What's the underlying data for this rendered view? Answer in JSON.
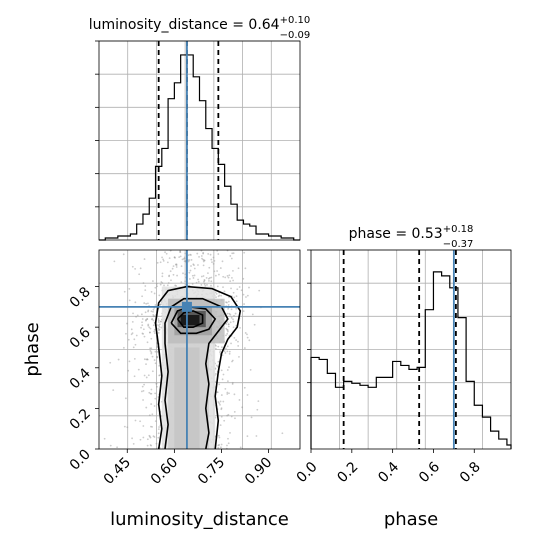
{
  "chart_data": {
    "type": "corner",
    "title": "",
    "parameters": [
      "luminosity_distance",
      "phase"
    ],
    "truths": {
      "luminosity_distance": 0.64,
      "phase": 0.7
    },
    "truth_color": "#4682b4",
    "grid": true,
    "panels": [
      {
        "name": "luminosity_distance-histogram",
        "type": "histogram",
        "title_param": "luminosity_distance",
        "title_value": "0.64",
        "title_plus": "+0.10",
        "title_minus": "−0.09",
        "xlim": [
          0.36,
          1.0
        ],
        "ylim": [
          0,
          1.0
        ],
        "bin_edges": [
          0.36,
          0.38,
          0.4,
          0.42,
          0.44,
          0.46,
          0.48,
          0.5,
          0.52,
          0.54,
          0.56,
          0.58,
          0.6,
          0.62,
          0.64,
          0.66,
          0.68,
          0.7,
          0.72,
          0.74,
          0.76,
          0.78,
          0.8,
          0.82,
          0.84,
          0.86,
          0.88,
          0.9,
          0.92,
          0.94,
          0.96,
          0.98,
          1.0
        ],
        "counts": [
          0,
          0.01,
          0.01,
          0.02,
          0.02,
          0.03,
          0.08,
          0.13,
          0.21,
          0.37,
          0.46,
          0.71,
          0.79,
          0.93,
          0.93,
          0.82,
          0.7,
          0.56,
          0.46,
          0.38,
          0.27,
          0.18,
          0.1,
          0.08,
          0.07,
          0.03,
          0.03,
          0.02,
          0.02,
          0.01,
          0.01,
          0
        ],
        "quantiles": [
          0.55,
          0.64,
          0.74
        ],
        "truth": 0.64,
        "show_y_ticks": false
      },
      {
        "name": "phase-histogram",
        "type": "histogram",
        "title_param": "phase",
        "title_value": "0.53",
        "title_plus": "+0.18",
        "title_minus": "−0.37",
        "xlim": [
          0.0,
          0.98
        ],
        "ylim": [
          0,
          1.0
        ],
        "bin_edges": [
          0.0,
          0.04,
          0.08,
          0.12,
          0.16,
          0.2,
          0.24,
          0.28,
          0.32,
          0.36,
          0.4,
          0.44,
          0.48,
          0.52,
          0.56,
          0.6,
          0.64,
          0.68,
          0.72,
          0.76,
          0.8,
          0.84,
          0.88,
          0.92,
          0.96,
          0.98
        ],
        "counts": [
          0.46,
          0.45,
          0.38,
          0.31,
          0.34,
          0.33,
          0.32,
          0.31,
          0.36,
          0.36,
          0.44,
          0.42,
          0.4,
          0.41,
          0.7,
          0.89,
          0.87,
          0.81,
          0.66,
          0.34,
          0.22,
          0.16,
          0.09,
          0.05,
          0.02
        ],
        "quantiles": [
          0.16,
          0.53,
          0.71
        ],
        "truth": 0.7,
        "x_ticks": [
          "0.0",
          "0.2",
          "0.4",
          "0.6",
          "0.8"
        ],
        "x_tick_values": [
          0.0,
          0.2,
          0.4,
          0.6,
          0.8
        ],
        "xlabel": "phase",
        "show_y_ticks": false
      },
      {
        "name": "phase-vs-luminosity_distance-2d",
        "type": "contour",
        "xlim": [
          0.36,
          1.0
        ],
        "ylim": [
          0.0,
          0.98
        ],
        "x_ticks": [
          "0.45",
          "0.60",
          "0.75",
          "0.90"
        ],
        "x_tick_values": [
          0.45,
          0.6,
          0.75,
          0.9
        ],
        "y_ticks": [
          "0.0",
          "0.2",
          "0.4",
          "0.6",
          "0.8"
        ],
        "y_tick_values": [
          0.0,
          0.2,
          0.4,
          0.6,
          0.8
        ],
        "xlabel": "luminosity_distance",
        "ylabel": "phase",
        "truth_x": 0.64,
        "truth_y": 0.7,
        "contours": [
          [
            [
              0.55,
              0.0
            ],
            [
              0.56,
              0.1
            ],
            [
              0.55,
              0.22
            ],
            [
              0.56,
              0.36
            ],
            [
              0.55,
              0.5
            ],
            [
              0.54,
              0.62
            ],
            [
              0.55,
              0.72
            ],
            [
              0.58,
              0.78
            ],
            [
              0.64,
              0.8
            ],
            [
              0.72,
              0.79
            ],
            [
              0.78,
              0.75
            ],
            [
              0.81,
              0.68
            ],
            [
              0.8,
              0.6
            ],
            [
              0.77,
              0.54
            ],
            [
              0.75,
              0.47
            ],
            [
              0.74,
              0.38
            ],
            [
              0.73,
              0.26
            ],
            [
              0.74,
              0.14
            ],
            [
              0.73,
              0.0
            ]
          ],
          [
            [
              0.57,
              0.0
            ],
            [
              0.58,
              0.12
            ],
            [
              0.57,
              0.24
            ],
            [
              0.58,
              0.38
            ],
            [
              0.57,
              0.52
            ],
            [
              0.57,
              0.62
            ],
            [
              0.59,
              0.7
            ],
            [
              0.63,
              0.74
            ],
            [
              0.69,
              0.74
            ],
            [
              0.75,
              0.7
            ],
            [
              0.77,
              0.64
            ],
            [
              0.74,
              0.58
            ],
            [
              0.71,
              0.52
            ],
            [
              0.7,
              0.42
            ],
            [
              0.71,
              0.32
            ],
            [
              0.7,
              0.2
            ],
            [
              0.71,
              0.08
            ],
            [
              0.7,
              0.0
            ]
          ],
          [
            [
              0.59,
              0.62
            ],
            [
              0.61,
              0.68
            ],
            [
              0.65,
              0.7
            ],
            [
              0.7,
              0.69
            ],
            [
              0.73,
              0.64
            ],
            [
              0.71,
              0.59
            ],
            [
              0.67,
              0.57
            ],
            [
              0.62,
              0.57
            ],
            [
              0.59,
              0.62
            ]
          ],
          [
            [
              0.61,
              0.64
            ],
            [
              0.63,
              0.67
            ],
            [
              0.66,
              0.68
            ],
            [
              0.69,
              0.66
            ],
            [
              0.69,
              0.62
            ],
            [
              0.66,
              0.6
            ],
            [
              0.63,
              0.6
            ],
            [
              0.61,
              0.64
            ]
          ]
        ]
      }
    ]
  }
}
